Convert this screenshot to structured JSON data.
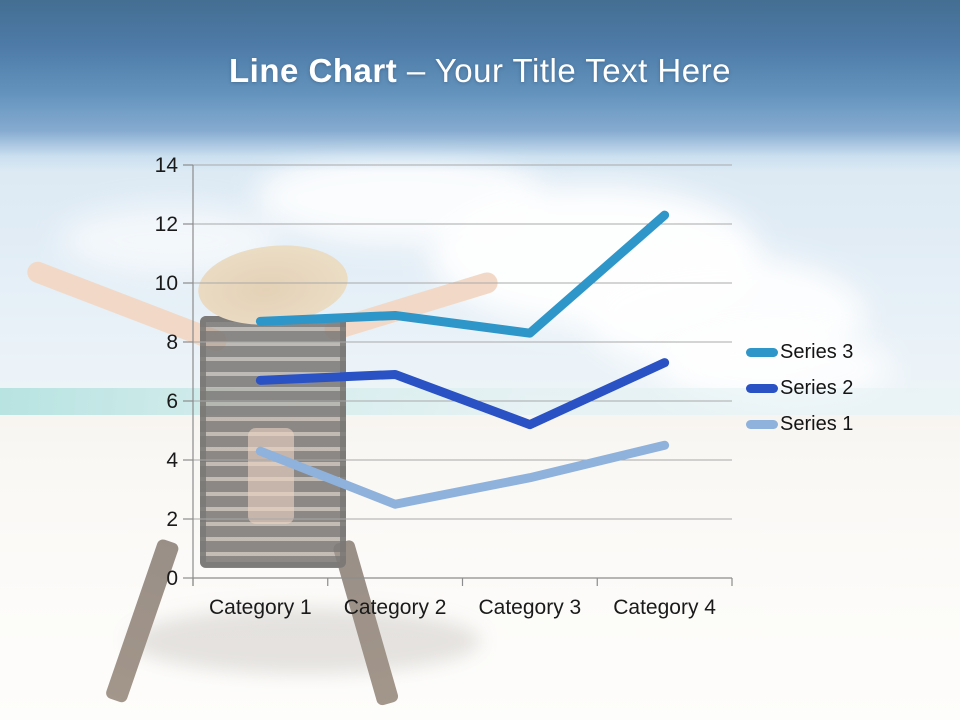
{
  "title": {
    "bold": "Line Chart ",
    "rest": "– Your Title Text Here"
  },
  "chart_data": {
    "type": "line",
    "categories": [
      "Category 1",
      "Category 2",
      "Category 3",
      "Category 4"
    ],
    "series": [
      {
        "name": "Series 1",
        "color": "#8FB2DC",
        "values": [
          4.3,
          2.5,
          3.4,
          4.5
        ]
      },
      {
        "name": "Series 2",
        "color": "#2A52C4",
        "values": [
          6.7,
          6.9,
          5.2,
          7.3
        ]
      },
      {
        "name": "Series 3",
        "color": "#2E96C8",
        "values": [
          8.7,
          8.9,
          8.3,
          12.3
        ]
      }
    ],
    "legend": {
      "position": "right",
      "order": [
        "Series 3",
        "Series 2",
        "Series 1"
      ]
    },
    "y_axis": {
      "min": 0,
      "max": 14,
      "tick_step": 2,
      "tick_labels": [
        "0",
        "2",
        "4",
        "6",
        "8",
        "10",
        "12",
        "14"
      ]
    },
    "grid": true,
    "colors": {
      "gridline": "#A9A9A9",
      "axis": "#8C8C8C",
      "tick_text": "#1A1A1A"
    }
  }
}
